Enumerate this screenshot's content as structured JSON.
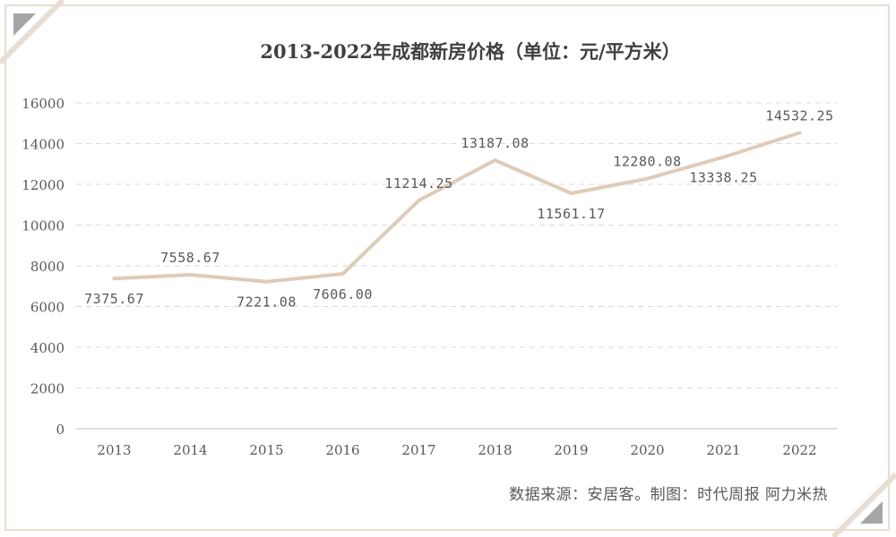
{
  "chart_data": {
    "type": "line",
    "title": "2013-2022年成都新房价格（单位：元/平方米）",
    "categories": [
      "2013",
      "2014",
      "2015",
      "2016",
      "2017",
      "2018",
      "2019",
      "2020",
      "2021",
      "2022"
    ],
    "series": [
      {
        "name": "成都新房价格",
        "values": [
          7375.67,
          7558.67,
          7221.08,
          7606.0,
          11214.25,
          13187.08,
          11561.17,
          12280.08,
          13338.25,
          14532.25
        ],
        "labels": [
          "7375.67",
          "7558.67",
          "7221.08",
          "7606.00",
          "11214.25",
          "13187.08",
          "11561.17",
          "12280.08",
          "13338.25",
          "14532.25"
        ],
        "color": "#dfcbb8"
      }
    ],
    "ylim": [
      0,
      16000
    ],
    "yticks": [
      0,
      2000,
      4000,
      6000,
      8000,
      10000,
      12000,
      14000,
      16000
    ],
    "grid": true,
    "xlabel": "",
    "ylabel": ""
  },
  "source": "数据来源：安居客。制图：时代周报 阿力米热",
  "colors": {
    "line": "#dfcbb8",
    "grid": "#d9d9d9",
    "axis": "#bfbfbf",
    "text": "#595959",
    "title": "#404040",
    "frame": "#e8ddd1",
    "corner": "#a6a6a6"
  }
}
